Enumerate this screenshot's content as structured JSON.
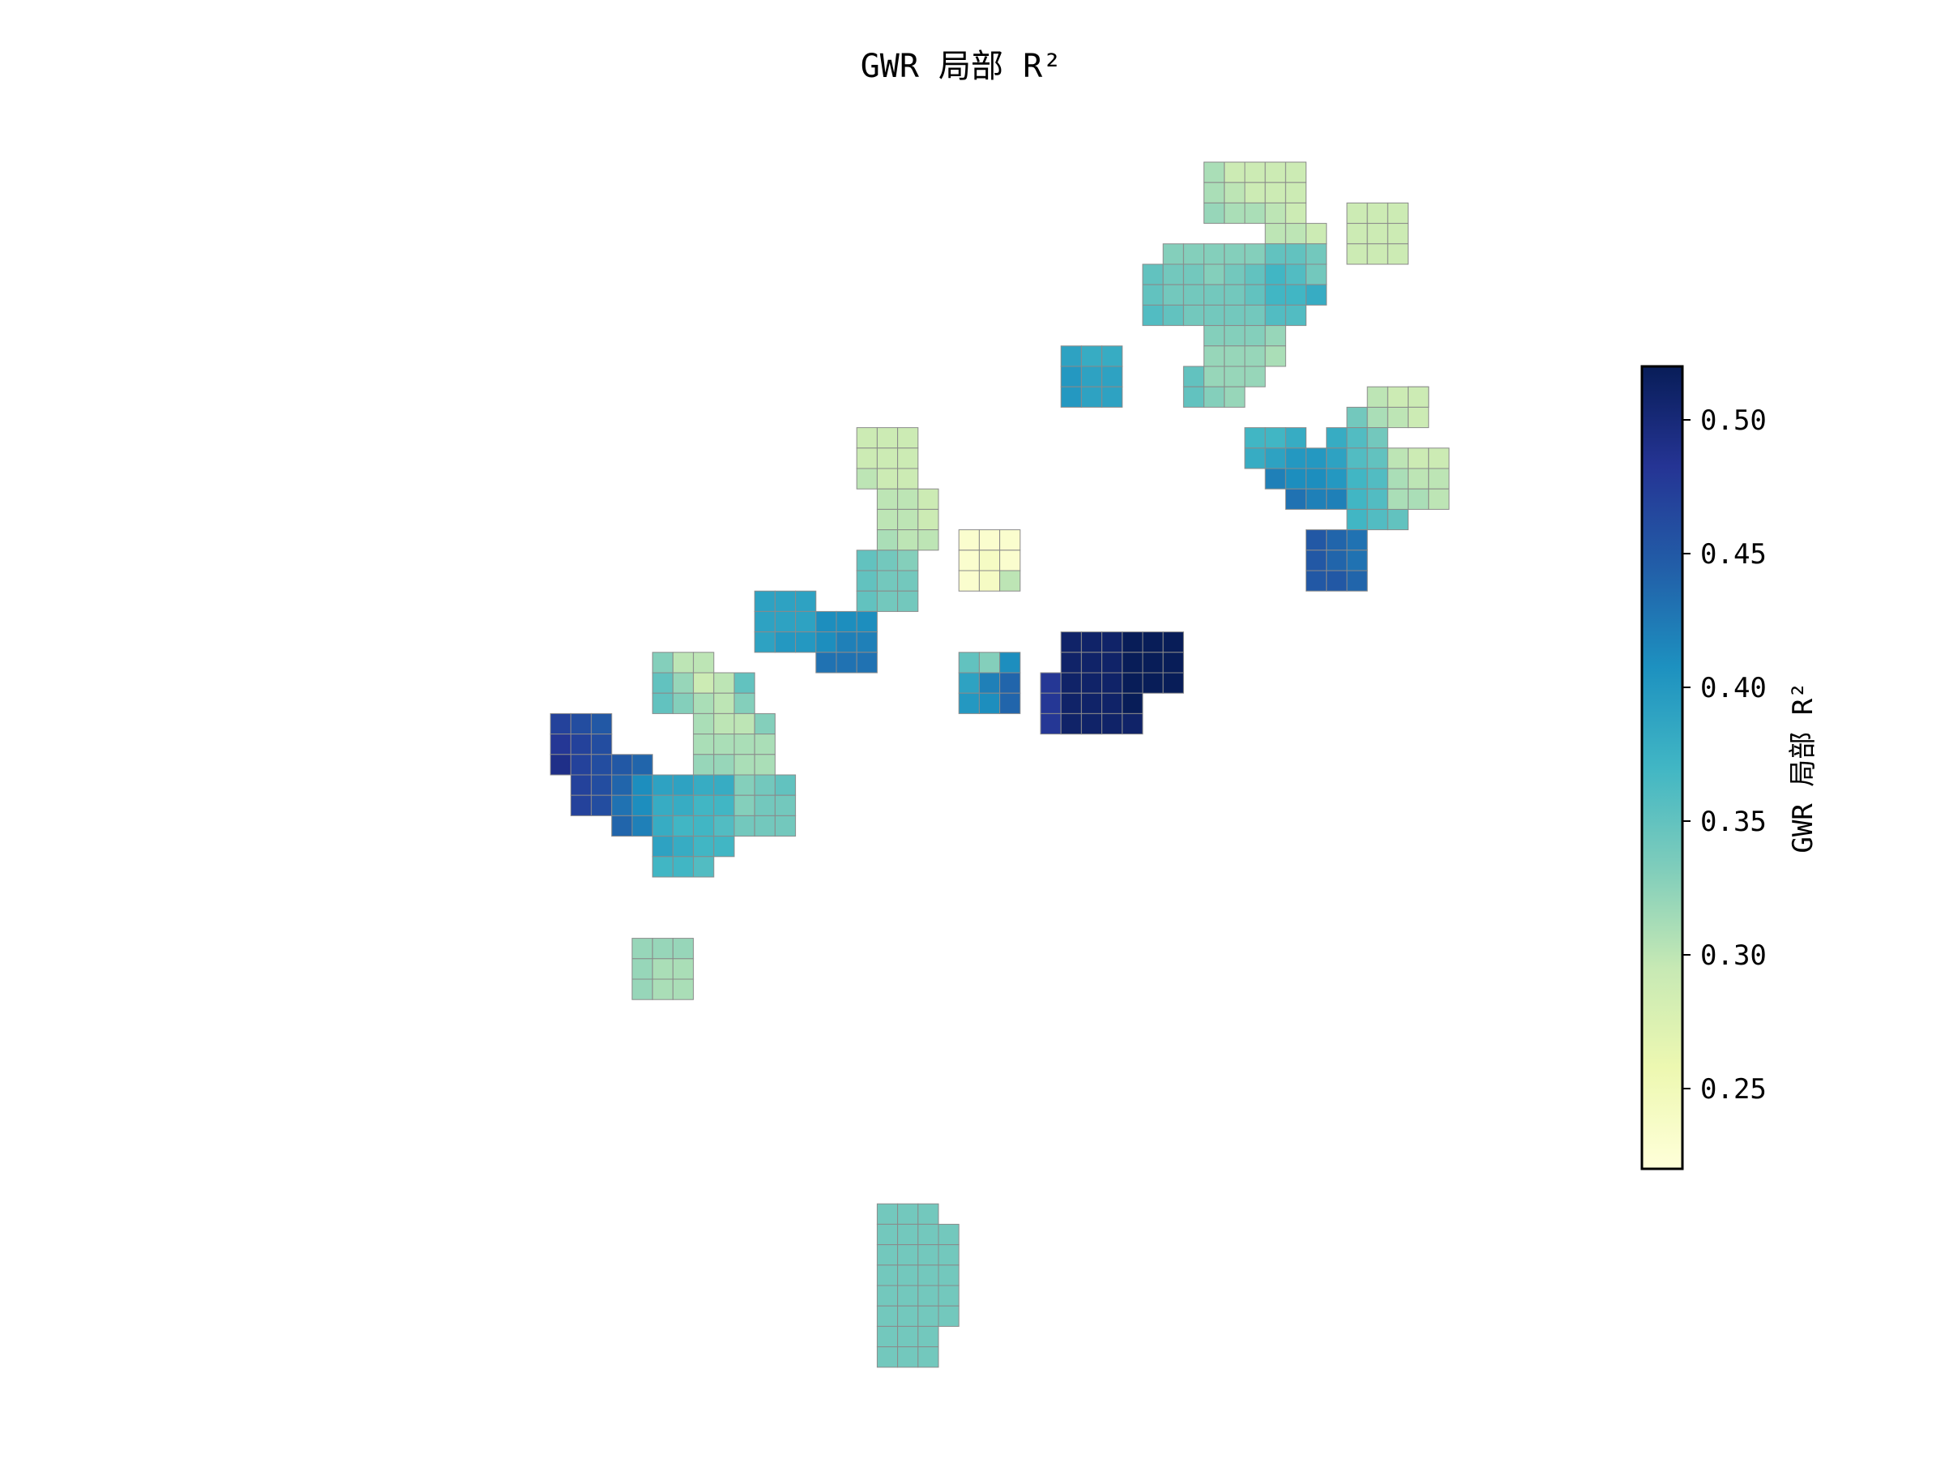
{
  "figure": {
    "title": "GWR 局部 R²"
  },
  "chart_data": {
    "type": "heatmap",
    "title": "GWR 局部 R²",
    "colormap": "YlGnBu",
    "colormap_stops": [
      "#ffffd9",
      "#edf8b1",
      "#c7e9b4",
      "#7fcdbb",
      "#41b6c4",
      "#1d91c0",
      "#225ea8",
      "#253494",
      "#081d58"
    ],
    "cell_edge_color": "#8a8a8a",
    "colorbar": {
      "label": "GWR 局部 R²",
      "range": [
        0.22,
        0.52
      ],
      "ticks": [
        {
          "value": 0.25,
          "label": "0.25"
        },
        {
          "value": 0.3,
          "label": "0.30"
        },
        {
          "value": 0.35,
          "label": "0.35"
        },
        {
          "value": 0.4,
          "label": "0.40"
        },
        {
          "value": 0.45,
          "label": "0.45"
        },
        {
          "value": 0.5,
          "label": "0.50"
        }
      ]
    },
    "axes_visible": false,
    "grid": false,
    "regions": [
      {
        "col": 38,
        "row": 0,
        "w": 5,
        "h": 3,
        "values": [
          0.31,
          0.29,
          0.29,
          0.29,
          0.29,
          0.31,
          0.3,
          0.29,
          0.29,
          0.29,
          0.32,
          0.31,
          0.31,
          0.3,
          0.29
        ]
      },
      {
        "col": 41,
        "row": 3,
        "w": 3,
        "h": 1,
        "values": [
          0.3,
          0.3,
          0.29
        ]
      },
      {
        "col": 45,
        "row": 2,
        "w": 3,
        "h": 3,
        "values": [
          0.29,
          0.29,
          0.29,
          0.29,
          0.29,
          0.29,
          0.29,
          0.29,
          0.29
        ]
      },
      {
        "col": 36,
        "row": 4,
        "w": 3,
        "h": 1,
        "values": [
          0.33,
          0.33,
          0.33
        ]
      },
      {
        "col": 39,
        "row": 4,
        "w": 5,
        "h": 1,
        "values": [
          0.33,
          0.33,
          0.35,
          0.35,
          0.34
        ]
      },
      {
        "col": 35,
        "row": 5,
        "w": 9,
        "h": 1,
        "values": [
          0.35,
          0.34,
          0.34,
          0.33,
          0.34,
          0.35,
          0.37,
          0.36,
          0.34
        ]
      },
      {
        "col": 35,
        "row": 6,
        "w": 9,
        "h": 1,
        "values": [
          0.35,
          0.34,
          0.34,
          0.34,
          0.34,
          0.35,
          0.37,
          0.37,
          0.38
        ]
      },
      {
        "col": 35,
        "row": 7,
        "w": 8,
        "h": 1,
        "values": [
          0.36,
          0.35,
          0.34,
          0.34,
          0.34,
          0.34,
          0.36,
          0.36
        ]
      },
      {
        "col": 38,
        "row": 8,
        "w": 4,
        "h": 1,
        "values": [
          0.33,
          0.33,
          0.33,
          0.32
        ]
      },
      {
        "col": 38,
        "row": 9,
        "w": 4,
        "h": 1,
        "values": [
          0.32,
          0.32,
          0.32,
          0.31
        ]
      },
      {
        "col": 37,
        "row": 10,
        "w": 4,
        "h": 1,
        "values": [
          0.35,
          0.32,
          0.32,
          0.32
        ]
      },
      {
        "col": 37,
        "row": 11,
        "w": 3,
        "h": 1,
        "values": [
          0.35,
          0.33,
          0.32
        ]
      },
      {
        "col": 31,
        "row": 9,
        "w": 3,
        "h": 3,
        "values": [
          0.39,
          0.38,
          0.38,
          0.4,
          0.39,
          0.39,
          0.4,
          0.39,
          0.39
        ]
      },
      {
        "col": 40,
        "row": 13,
        "w": 3,
        "h": 1,
        "values": [
          0.37,
          0.37,
          0.38
        ]
      },
      {
        "col": 40,
        "row": 14,
        "w": 5,
        "h": 1,
        "values": [
          0.38,
          0.39,
          0.4,
          0.4,
          0.4
        ]
      },
      {
        "col": 41,
        "row": 15,
        "w": 4,
        "h": 1,
        "values": [
          0.42,
          0.41,
          0.41,
          0.4
        ]
      },
      {
        "col": 42,
        "row": 16,
        "w": 3,
        "h": 1,
        "values": [
          0.43,
          0.42,
          0.42
        ]
      },
      {
        "col": 45,
        "row": 12,
        "w": 3,
        "h": 1,
        "values": [
          0.34,
          0.31,
          0.3
        ]
      },
      {
        "col": 46,
        "row": 11,
        "w": 3,
        "h": 1,
        "values": [
          0.3,
          0.29,
          0.28
        ]
      },
      {
        "col": 45,
        "row": 13,
        "w": 2,
        "h": 1,
        "values": [
          0.36,
          0.34
        ]
      },
      {
        "col": 45,
        "row": 14,
        "w": 2,
        "h": 1,
        "values": [
          0.36,
          0.35
        ]
      },
      {
        "col": 44,
        "row": 13,
        "w": 1,
        "h": 2,
        "values": [
          0.38,
          0.39
        ]
      },
      {
        "col": 45,
        "row": 15,
        "w": 2,
        "h": 1,
        "values": [
          0.37,
          0.36
        ]
      },
      {
        "col": 45,
        "row": 16,
        "w": 3,
        "h": 1,
        "values": [
          0.37,
          0.36,
          0.35
        ]
      },
      {
        "col": 45,
        "row": 17,
        "w": 3,
        "h": 1,
        "values": [
          0.37,
          0.36,
          0.35
        ]
      },
      {
        "col": 48,
        "row": 11,
        "w": 1,
        "h": 2,
        "values": [
          0.29,
          0.29
        ]
      },
      {
        "col": 47,
        "row": 14,
        "w": 3,
        "h": 3,
        "values": [
          0.3,
          0.29,
          0.29,
          0.31,
          0.3,
          0.3,
          0.31,
          0.31,
          0.3
        ]
      },
      {
        "col": 43,
        "row": 18,
        "w": 3,
        "h": 3,
        "values": [
          0.45,
          0.44,
          0.43,
          0.45,
          0.44,
          0.43,
          0.45,
          0.45,
          0.44
        ]
      },
      {
        "col": 21,
        "row": 13,
        "w": 3,
        "h": 3,
        "values": [
          0.29,
          0.29,
          0.29,
          0.29,
          0.29,
          0.29,
          0.3,
          0.29,
          0.29
        ]
      },
      {
        "col": 22,
        "row": 16,
        "w": 3,
        "h": 3,
        "values": [
          0.3,
          0.3,
          0.29,
          0.3,
          0.3,
          0.29,
          0.31,
          0.3,
          0.3
        ]
      },
      {
        "col": 21,
        "row": 19,
        "w": 3,
        "h": 3,
        "values": [
          0.35,
          0.34,
          0.33,
          0.35,
          0.34,
          0.34,
          0.35,
          0.34,
          0.34
        ]
      },
      {
        "col": 26,
        "row": 18,
        "w": 3,
        "h": 3,
        "values": [
          0.23,
          0.23,
          0.23,
          0.23,
          0.24,
          0.23,
          0.23,
          0.24,
          0.3
        ]
      },
      {
        "col": 16,
        "row": 21,
        "w": 3,
        "h": 3,
        "values": [
          0.39,
          0.39,
          0.39,
          0.39,
          0.39,
          0.39,
          0.39,
          0.4,
          0.4
        ]
      },
      {
        "col": 19,
        "row": 22,
        "w": 3,
        "h": 3,
        "values": [
          0.41,
          0.41,
          0.41,
          0.41,
          0.42,
          0.42,
          0.43,
          0.43,
          0.43
        ]
      },
      {
        "col": 26,
        "row": 24,
        "w": 3,
        "h": 3,
        "values": [
          0.35,
          0.33,
          0.41,
          0.39,
          0.42,
          0.44,
          0.4,
          0.41,
          0.44
        ]
      },
      {
        "col": 30,
        "row": 25,
        "w": 3,
        "h": 3,
        "values": [
          0.48,
          0.48,
          0.48,
          0.48,
          0.48,
          0.48,
          0.48,
          0.48,
          0.48
        ]
      },
      {
        "col": 31,
        "row": 23,
        "w": 6,
        "h": 3,
        "values": [
          0.51,
          0.51,
          0.51,
          0.52,
          0.52,
          0.52,
          0.51,
          0.51,
          0.51,
          0.52,
          0.52,
          0.52,
          0.51,
          0.51,
          0.51,
          0.52,
          0.52,
          0.52
        ]
      },
      {
        "col": 31,
        "row": 26,
        "w": 4,
        "h": 2,
        "values": [
          0.51,
          0.51,
          0.51,
          0.52,
          0.51,
          0.51,
          0.51,
          0.51
        ]
      },
      {
        "col": 11,
        "row": 24,
        "w": 3,
        "h": 1,
        "values": [
          0.33,
          0.3,
          0.3
        ]
      },
      {
        "col": 11,
        "row": 25,
        "w": 5,
        "h": 1,
        "values": [
          0.35,
          0.32,
          0.29,
          0.3,
          0.35
        ]
      },
      {
        "col": 11,
        "row": 26,
        "w": 5,
        "h": 1,
        "values": [
          0.35,
          0.33,
          0.31,
          0.3,
          0.33
        ]
      },
      {
        "col": 13,
        "row": 27,
        "w": 4,
        "h": 1,
        "values": [
          0.31,
          0.3,
          0.3,
          0.33
        ]
      },
      {
        "col": 13,
        "row": 28,
        "w": 4,
        "h": 1,
        "values": [
          0.31,
          0.31,
          0.31,
          0.31
        ]
      },
      {
        "col": 13,
        "row": 29,
        "w": 4,
        "h": 1,
        "values": [
          0.32,
          0.32,
          0.31,
          0.31
        ]
      },
      {
        "col": 15,
        "row": 30,
        "w": 3,
        "h": 3,
        "values": [
          0.33,
          0.34,
          0.35,
          0.33,
          0.34,
          0.34,
          0.34,
          0.34,
          0.34
        ]
      },
      {
        "col": 6,
        "row": 27,
        "w": 3,
        "h": 3,
        "values": [
          0.47,
          0.46,
          0.45,
          0.48,
          0.47,
          0.46,
          0.49,
          0.47,
          0.46
        ]
      },
      {
        "col": 7,
        "row": 30,
        "w": 3,
        "h": 2,
        "values": [
          0.47,
          0.46,
          0.44,
          0.47,
          0.46,
          0.45
        ]
      },
      {
        "col": 9,
        "row": 29,
        "w": 2,
        "h": 4,
        "values": [
          0.45,
          0.44,
          0.44,
          0.41,
          0.43,
          0.41,
          0.44,
          0.42
        ]
      },
      {
        "col": 11,
        "row": 30,
        "w": 4,
        "h": 3,
        "values": [
          0.39,
          0.39,
          0.38,
          0.38,
          0.38,
          0.38,
          0.37,
          0.37,
          0.38,
          0.37,
          0.37,
          0.36
        ]
      },
      {
        "col": 11,
        "row": 33,
        "w": 4,
        "h": 1,
        "values": [
          0.39,
          0.38,
          0.37,
          0.37
        ]
      },
      {
        "col": 11,
        "row": 34,
        "w": 3,
        "h": 1,
        "values": [
          0.37,
          0.37,
          0.36
        ]
      },
      {
        "col": 10,
        "row": 38,
        "w": 3,
        "h": 3,
        "values": [
          0.32,
          0.32,
          0.32,
          0.32,
          0.31,
          0.31,
          0.32,
          0.31,
          0.31
        ]
      },
      {
        "col": 22,
        "row": 51,
        "w": 3,
        "h": 8,
        "values": [
          0.34,
          0.34,
          0.34,
          0.34,
          0.34,
          0.34,
          0.34,
          0.34,
          0.34,
          0.34,
          0.34,
          0.34,
          0.34,
          0.34,
          0.34,
          0.34,
          0.34,
          0.34,
          0.34,
          0.34,
          0.34,
          0.34,
          0.34,
          0.34
        ]
      },
      {
        "col": 25,
        "row": 52,
        "w": 1,
        "h": 5,
        "values": [
          0.34,
          0.34,
          0.34,
          0.34,
          0.34
        ]
      }
    ]
  }
}
